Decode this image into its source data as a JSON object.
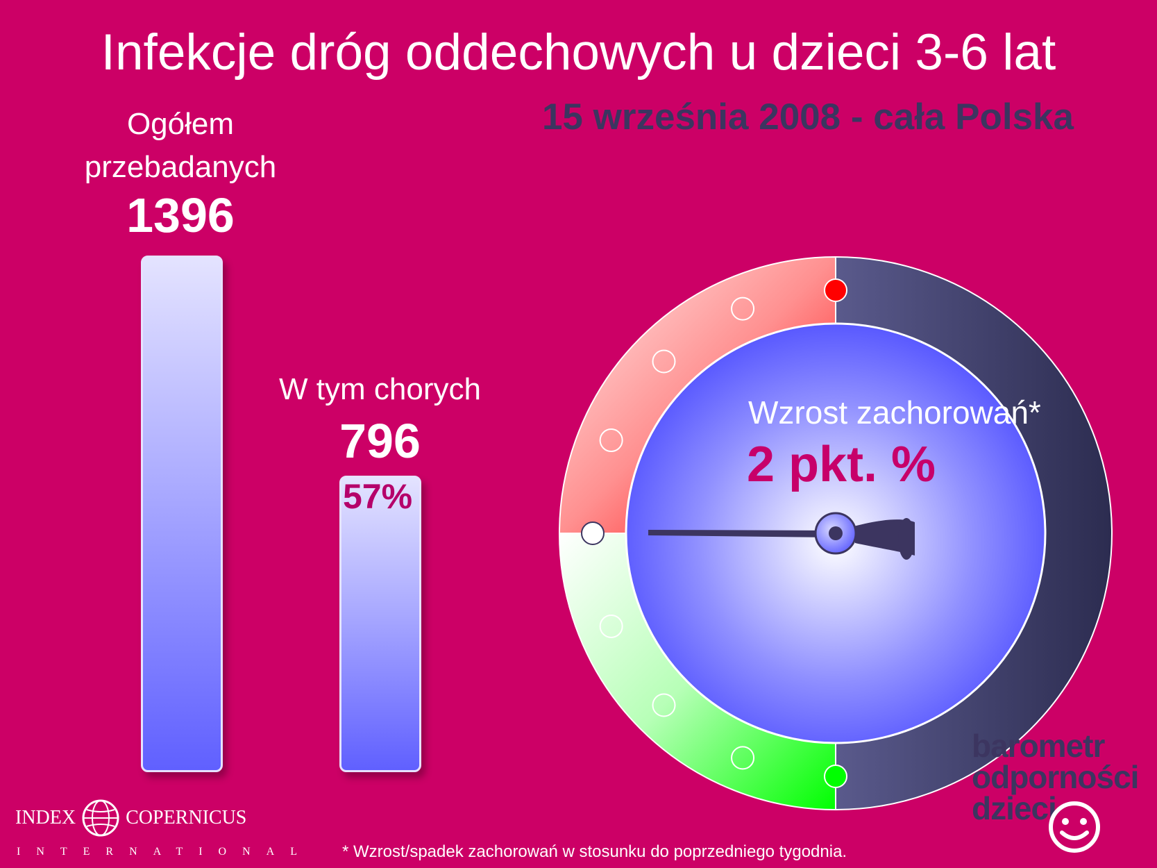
{
  "chart_data": {
    "type": "bar",
    "title": "Infekcje dróg oddechowych u dzieci 3-6 lat",
    "subtitle": "15 września 2008 - cała Polska",
    "categories": [
      "Ogółem przebadanych",
      "W tym chorych"
    ],
    "values": [
      1396,
      796
    ],
    "bars": [
      {
        "label_lines": [
          "Ogółem",
          "przebadanych"
        ],
        "value_text": "1396",
        "value": 1396,
        "percent_text": ""
      },
      {
        "label_lines": [
          "W tym chorych"
        ],
        "value_text": "796",
        "value": 796,
        "percent_text": "57%"
      }
    ],
    "gauge": {
      "label": "Wzrost zachorowań*",
      "value_text": "2 pkt. %",
      "value": 2,
      "colors": {
        "increase": "#ff0000",
        "decrease": "#00ff00",
        "dial": "#5050ff",
        "needle": "#3c3560"
      }
    },
    "footnote": "* Wzrost/spadek zachorowań w stosunku do poprzedniego tygodnia."
  },
  "brand": {
    "lines": [
      "barometr",
      "odporności",
      "dzieci"
    ],
    "smile_icon": "smiley-icon"
  },
  "logo": {
    "left": "INDEX",
    "right": "COPERNICUS",
    "sub": "INTERNATIONAL",
    "icon": "globe-icon"
  },
  "colors": {
    "background": "#cc0066",
    "title": "#ffffff",
    "subtitle": "#3c3560",
    "accent": "#c7006a"
  }
}
